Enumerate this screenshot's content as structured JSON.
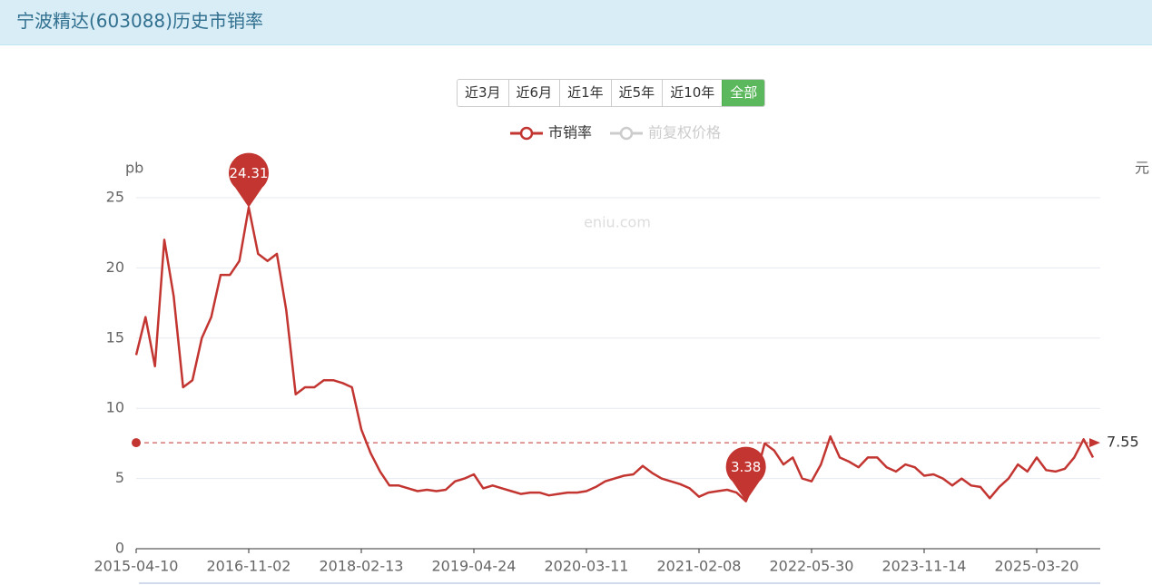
{
  "header": {
    "title": "宁波精达(603088)历史市销率"
  },
  "range_buttons": [
    "近3月",
    "近6月",
    "近1年",
    "近5年",
    "近10年",
    "全部"
  ],
  "active_button": 5,
  "chart_data": {
    "type": "line",
    "watermark": "eniu.com",
    "y_axis_label": "pb",
    "y2_axis_label": "元",
    "categories": [
      "2015-04-10",
      null,
      null,
      null,
      null,
      null,
      null,
      null,
      null,
      null,
      null,
      null,
      "2016-11-02",
      null,
      null,
      null,
      null,
      null,
      null,
      null,
      null,
      null,
      null,
      null,
      "2018-02-13",
      null,
      null,
      null,
      null,
      null,
      null,
      null,
      null,
      null,
      null,
      null,
      "2019-04-24",
      null,
      null,
      null,
      null,
      null,
      null,
      null,
      null,
      null,
      null,
      null,
      "2020-03-11",
      null,
      null,
      null,
      null,
      null,
      null,
      null,
      null,
      null,
      null,
      null,
      "2021-02-08",
      null,
      null,
      null,
      null,
      null,
      null,
      null,
      null,
      null,
      null,
      null,
      "2022-05-30",
      null,
      null,
      null,
      null,
      null,
      null,
      null,
      null,
      null,
      null,
      null,
      "2023-11-14",
      null,
      null,
      null,
      null,
      null,
      null,
      null,
      null,
      null,
      null,
      null,
      "2025-03-20",
      null,
      null,
      null,
      null,
      null,
      null
    ],
    "series": [
      {
        "name": "市销率",
        "color": "#c23531",
        "values": [
          13.8,
          16.5,
          13,
          22,
          18,
          11.5,
          12,
          15,
          16.5,
          19.5,
          19.5,
          20.5,
          24.31,
          21,
          20.5,
          21,
          17,
          11,
          11.5,
          11.5,
          12,
          12,
          11.8,
          11.5,
          8.5,
          6.8,
          5.5,
          4.5,
          4.5,
          4.3,
          4.1,
          4.2,
          4.1,
          4.2,
          4.8,
          5,
          5.3,
          4.3,
          4.5,
          4.3,
          4.1,
          3.9,
          4,
          4,
          3.8,
          3.9,
          4,
          4,
          4.1,
          4.4,
          4.8,
          5,
          5.2,
          5.3,
          5.9,
          5.4,
          5,
          4.8,
          4.6,
          4.3,
          3.7,
          4,
          4.1,
          4.2,
          4,
          3.38,
          5,
          7.5,
          7,
          6,
          6.5,
          5,
          4.8,
          6,
          8,
          6.5,
          6.2,
          5.8,
          6.5,
          6.5,
          5.8,
          5.5,
          6,
          5.8,
          5.2,
          5.3,
          5,
          4.5,
          5,
          4.5,
          4.4,
          3.6,
          4.4,
          5,
          6,
          5.5,
          6.5,
          5.6,
          5.5,
          5.7,
          6.5,
          7.8,
          6.5
        ]
      }
    ],
    "hidden_series": [
      {
        "name": "前复权价格",
        "color": "#cccccc"
      }
    ],
    "mark_points": [
      12,
      65
    ],
    "average": 7.55,
    "ylim": [
      0,
      25
    ],
    "yticks": [
      0,
      5,
      10,
      15,
      20,
      25
    ],
    "grid": true
  }
}
